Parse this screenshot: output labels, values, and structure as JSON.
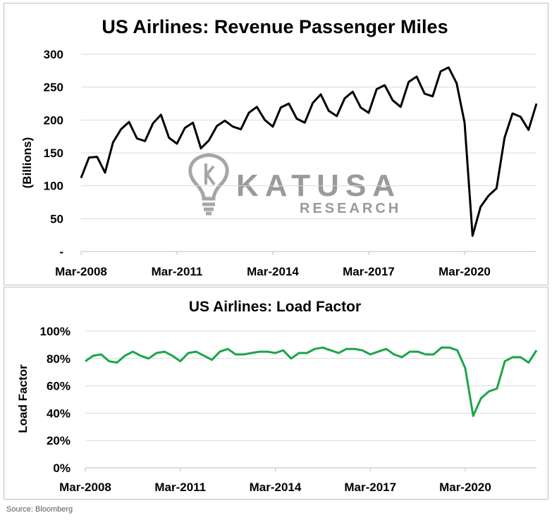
{
  "source": "Source: Bloomberg",
  "watermark": {
    "brand": "KATUSA",
    "sub": "RESEARCH",
    "color": "#9a9a9a"
  },
  "chart_data": [
    {
      "type": "line",
      "title": "US Airlines: Revenue Passenger Miles",
      "ylabel": "(Billions)",
      "xlabel": "",
      "ylim": [
        0,
        300
      ],
      "yticks": [
        {
          "value": 0,
          "label": "-"
        },
        {
          "value": 50,
          "label": "50"
        },
        {
          "value": 100,
          "label": "100"
        },
        {
          "value": 150,
          "label": "150"
        },
        {
          "value": 200,
          "label": "200"
        },
        {
          "value": 250,
          "label": "250"
        },
        {
          "value": 300,
          "label": "300"
        }
      ],
      "xticks": [
        {
          "index": 0,
          "label": "Mar-2008"
        },
        {
          "index": 12,
          "label": "Mar-2011"
        },
        {
          "index": 24,
          "label": "Mar-2014"
        },
        {
          "index": 36,
          "label": "Mar-2017"
        },
        {
          "index": 48,
          "label": "Mar-2020"
        }
      ],
      "grid": true,
      "color": "#000000",
      "series": [
        {
          "values": [
            112,
            143,
            144,
            120,
            166,
            186,
            197,
            172,
            168,
            195,
            208,
            173,
            164,
            188,
            196,
            157,
            169,
            191,
            199,
            190,
            186,
            211,
            220,
            200,
            190,
            219,
            225,
            202,
            196,
            226,
            239,
            214,
            206,
            233,
            243,
            219,
            211,
            247,
            253,
            230,
            220,
            258,
            266,
            240,
            236,
            274,
            280,
            256,
            196,
            24,
            68,
            85,
            96,
            173,
            210,
            205,
            185,
            225
          ]
        }
      ]
    },
    {
      "type": "line",
      "title": "US Airlines: Load Factor",
      "ylabel": "Load Factor",
      "xlabel": "",
      "ylim": [
        0,
        100
      ],
      "yticks": [
        {
          "value": 0,
          "label": "0%"
        },
        {
          "value": 20,
          "label": "20%"
        },
        {
          "value": 40,
          "label": "40%"
        },
        {
          "value": 60,
          "label": "60%"
        },
        {
          "value": 80,
          "label": "80%"
        },
        {
          "value": 100,
          "label": "100%"
        }
      ],
      "xticks": [
        {
          "index": 0,
          "label": "Mar-2008"
        },
        {
          "index": 12,
          "label": "Mar-2011"
        },
        {
          "index": 24,
          "label": "Mar-2014"
        },
        {
          "index": 36,
          "label": "Mar-2017"
        },
        {
          "index": 48,
          "label": "Mar-2020"
        }
      ],
      "grid": true,
      "color": "#1aa64a",
      "series": [
        {
          "values": [
            78,
            82,
            83,
            78,
            77,
            82,
            85,
            82,
            80,
            84,
            85,
            82,
            78,
            84,
            85,
            82,
            79,
            85,
            87,
            83,
            83,
            84,
            85,
            85,
            84,
            86,
            80,
            84,
            84,
            87,
            88,
            86,
            84,
            87,
            87,
            86,
            83,
            85,
            87,
            83,
            81,
            85,
            85,
            83,
            83,
            88,
            88,
            86,
            73,
            38,
            51,
            56,
            58,
            78,
            81,
            81,
            77,
            86
          ]
        }
      ]
    }
  ]
}
